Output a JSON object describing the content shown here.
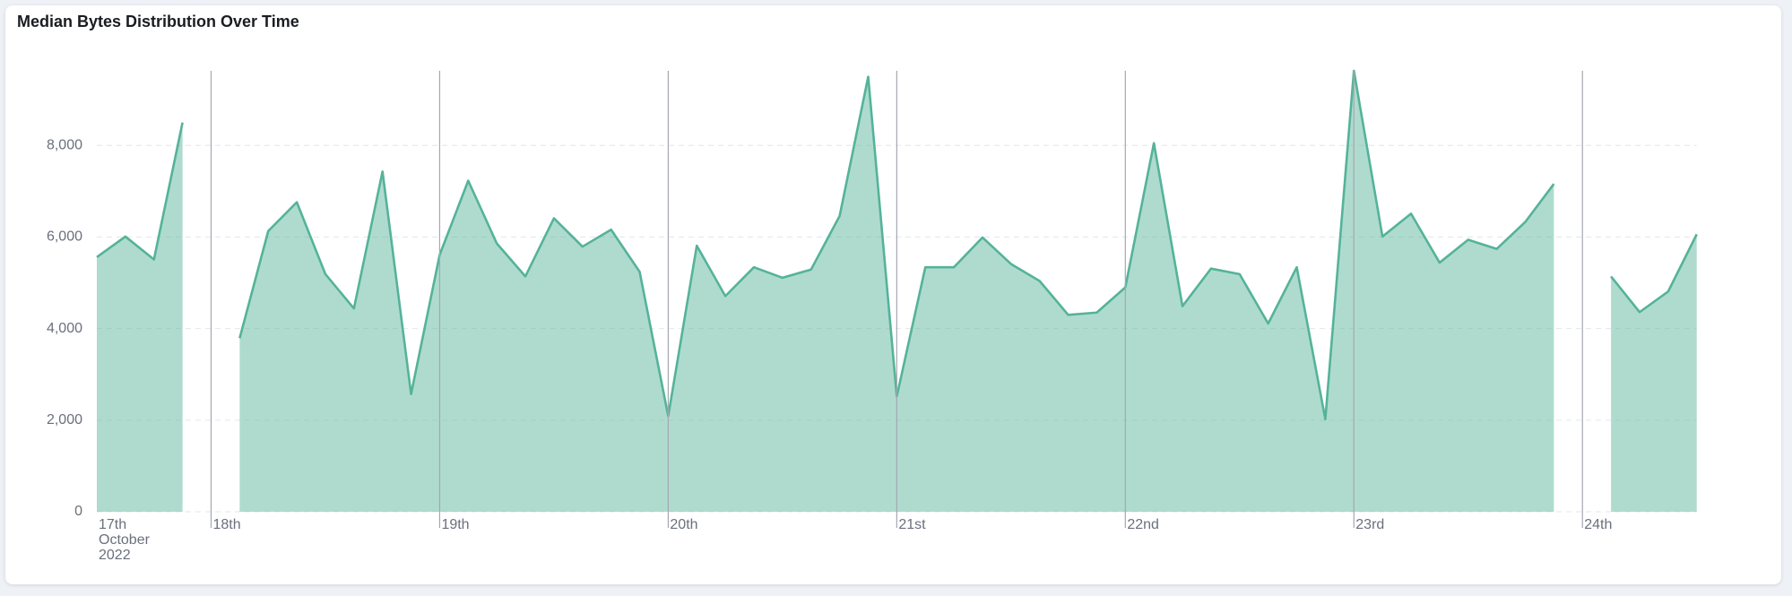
{
  "chart_data": {
    "type": "area",
    "title": "Median Bytes Distribution Over Time",
    "categories": [
      "17th October 2022",
      null,
      null,
      null,
      "18th",
      null,
      null,
      null,
      null,
      null,
      null,
      null,
      "19th",
      null,
      null,
      null,
      null,
      null,
      null,
      null,
      "20th",
      null,
      null,
      null,
      null,
      null,
      null,
      null,
      "21st",
      null,
      null,
      null,
      null,
      null,
      null,
      null,
      "22nd",
      null,
      null,
      null,
      null,
      null,
      null,
      null,
      "23rd",
      null,
      null,
      null,
      null,
      null,
      null,
      null,
      "24th",
      null,
      null,
      null,
      null
    ],
    "values": [
      5560,
      6010,
      5510,
      8500,
      null,
      3790,
      6130,
      6760,
      5190,
      4440,
      7430,
      2570,
      5610,
      7230,
      5860,
      5140,
      6410,
      5790,
      6160,
      5240,
      2090,
      5810,
      4710,
      5340,
      5110,
      5290,
      6460,
      9500,
      2520,
      5340,
      5340,
      5990,
      5410,
      5040,
      4300,
      4350,
      4900,
      8050,
      4490,
      5310,
      5190,
      4110,
      5340,
      2020,
      9630,
      6010,
      6510,
      5440,
      5940,
      5740,
      6330,
      7160,
      null,
      5140,
      4360,
      4810,
      6060
    ],
    "color": "#54b399",
    "ylim": [
      0,
      9630
    ],
    "yticks": [
      0,
      {
        "value": 2000,
        "label": "2,000"
      },
      {
        "value": 4000,
        "label": "4,000"
      },
      {
        "value": 6000,
        "label": "6,000"
      },
      {
        "value": 8000,
        "label": "8,000"
      }
    ],
    "grid": true
  }
}
